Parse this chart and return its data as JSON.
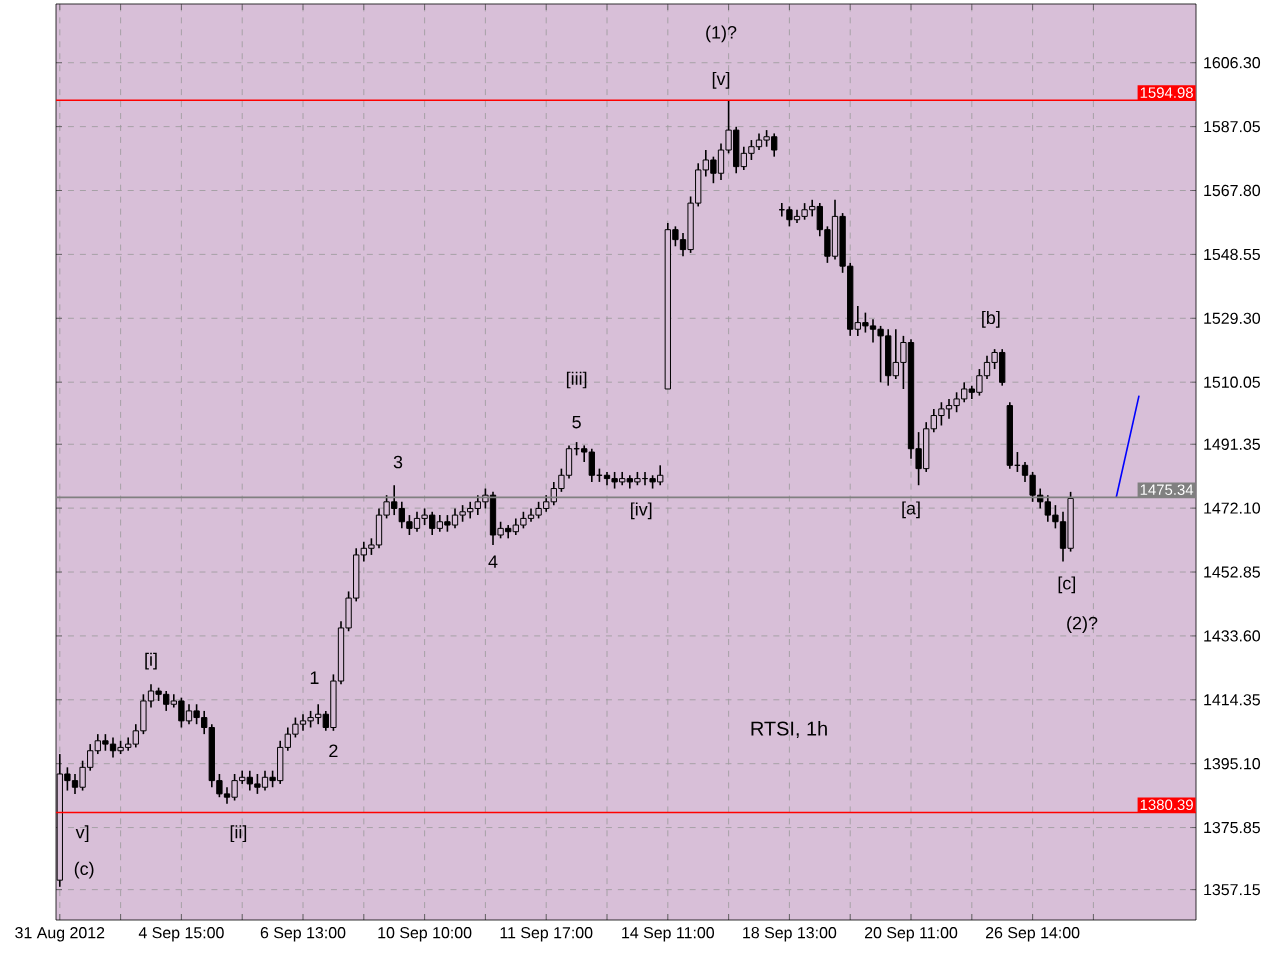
{
  "chart_data": {
    "type": "candlestick",
    "title": "RTSI, 1h",
    "color": "#000000",
    "grid": true,
    "categories": [
      "31 Aug 2012",
      null,
      null,
      null,
      null,
      null,
      null,
      null,
      null,
      null,
      null,
      null,
      null,
      null,
      null,
      null,
      "4 Sep 15:00",
      null,
      null,
      null,
      null,
      null,
      null,
      null,
      null,
      null,
      null,
      null,
      null,
      null,
      null,
      null,
      "6 Sep 13:00",
      null,
      null,
      null,
      null,
      null,
      null,
      null,
      null,
      null,
      null,
      null,
      null,
      null,
      null,
      null,
      "10 Sep 10:00",
      null,
      null,
      null,
      null,
      null,
      null,
      null,
      null,
      null,
      null,
      null,
      null,
      null,
      null,
      null,
      "11 Sep 17:00",
      null,
      null,
      null,
      null,
      null,
      null,
      null,
      null,
      null,
      null,
      null,
      null,
      null,
      null,
      null,
      "14 Sep 11:00",
      null,
      null,
      null,
      null,
      null,
      null,
      null,
      null,
      null,
      null,
      null,
      null,
      null,
      null,
      null,
      "18 Sep 13:00",
      null,
      null,
      null,
      null,
      null,
      null,
      null,
      null,
      null,
      null,
      null,
      null,
      null,
      null,
      null,
      "20 Sep 11:00",
      null,
      null,
      null,
      null,
      null,
      null,
      null,
      null,
      null,
      null,
      null,
      null,
      null,
      null,
      null,
      "26 Sep 14:00",
      null,
      null,
      null,
      null,
      null,
      null,
      null,
      null,
      null,
      null,
      null,
      null,
      null,
      null,
      null,
      null,
      null,
      null,
      null,
      null,
      null
    ],
    "ylim": [
      1348,
      1624
    ],
    "yticks": [
      {
        "value": 1357.15,
        "label": "1357.15"
      },
      {
        "value": 1375.85,
        "label": "1375.85"
      },
      {
        "value": 1395.1,
        "label": "1395.10"
      },
      {
        "value": 1414.35,
        "label": "1414.35"
      },
      {
        "value": 1433.6,
        "label": "1433.60"
      },
      {
        "value": 1452.85,
        "label": "1452.85"
      },
      {
        "value": 1472.1,
        "label": "1472.10"
      },
      {
        "value": 1491.35,
        "label": "1491.35"
      },
      {
        "value": 1510.05,
        "label": "1510.05"
      },
      {
        "value": 1529.3,
        "label": "1529.30"
      },
      {
        "value": 1548.55,
        "label": "1548.55"
      },
      {
        "value": 1567.8,
        "label": "1567.80"
      },
      {
        "value": 1587.05,
        "label": "1587.05"
      },
      {
        "value": 1606.3,
        "label": "1606.30"
      }
    ],
    "ohlc": [
      [
        1360,
        1398,
        1358,
        1392
      ],
      [
        1392,
        1394,
        1387,
        1390
      ],
      [
        1390,
        1392,
        1386,
        1388
      ],
      [
        1388,
        1396,
        1387,
        1394
      ],
      [
        1394,
        1401,
        1393,
        1399
      ],
      [
        1399,
        1404,
        1398,
        1402
      ],
      [
        1402,
        1404,
        1399,
        1401
      ],
      [
        1401,
        1403,
        1397,
        1399
      ],
      [
        1399,
        1402,
        1398,
        1400
      ],
      [
        1400,
        1403,
        1399,
        1401
      ],
      [
        1401,
        1407,
        1400,
        1405
      ],
      [
        1405,
        1416,
        1404,
        1414
      ],
      [
        1414,
        1419,
        1412,
        1417
      ],
      [
        1417,
        1418,
        1414,
        1416
      ],
      [
        1416,
        1417,
        1411,
        1413
      ],
      [
        1413,
        1416,
        1412,
        1414
      ],
      [
        1414,
        1415,
        1406,
        1408
      ],
      [
        1408,
        1413,
        1407,
        1411
      ],
      [
        1411,
        1413,
        1407,
        1409
      ],
      [
        1409,
        1411,
        1404,
        1406
      ],
      [
        1406,
        1407,
        1388,
        1390
      ],
      [
        1390,
        1392,
        1385,
        1386
      ],
      [
        1386,
        1388,
        1383,
        1385
      ],
      [
        1385,
        1392,
        1384,
        1390
      ],
      [
        1390,
        1393,
        1389,
        1391
      ],
      [
        1391,
        1393,
        1387,
        1389
      ],
      [
        1389,
        1392,
        1386,
        1388
      ],
      [
        1388,
        1393,
        1387,
        1391
      ],
      [
        1391,
        1393,
        1388,
        1390
      ],
      [
        1390,
        1402,
        1389,
        1400
      ],
      [
        1400,
        1406,
        1399,
        1404
      ],
      [
        1404,
        1409,
        1403,
        1407
      ],
      [
        1407,
        1410,
        1405,
        1408
      ],
      [
        1408,
        1411,
        1406,
        1409
      ],
      [
        1409,
        1413,
        1407,
        1410
      ],
      [
        1410,
        1411,
        1405,
        1406
      ],
      [
        1406,
        1422,
        1405,
        1420
      ],
      [
        1420,
        1438,
        1419,
        1436
      ],
      [
        1436,
        1447,
        1435,
        1445
      ],
      [
        1445,
        1460,
        1444,
        1458
      ],
      [
        1458,
        1462,
        1456,
        1460
      ],
      [
        1460,
        1463,
        1458,
        1461
      ],
      [
        1461,
        1472,
        1460,
        1470
      ],
      [
        1470,
        1476,
        1469,
        1474
      ],
      [
        1474,
        1479,
        1470,
        1472
      ],
      [
        1472,
        1474,
        1466,
        1468
      ],
      [
        1468,
        1470,
        1464,
        1466
      ],
      [
        1466,
        1471,
        1465,
        1469
      ],
      [
        1469,
        1472,
        1467,
        1470
      ],
      [
        1470,
        1471,
        1464,
        1466
      ],
      [
        1466,
        1470,
        1465,
        1468
      ],
      [
        1468,
        1470,
        1465,
        1467
      ],
      [
        1467,
        1472,
        1466,
        1470
      ],
      [
        1470,
        1473,
        1468,
        1471
      ],
      [
        1471,
        1474,
        1469,
        1472
      ],
      [
        1472,
        1476,
        1470,
        1474
      ],
      [
        1474,
        1478,
        1472,
        1476
      ],
      [
        1476,
        1477,
        1461,
        1464
      ],
      [
        1464,
        1468,
        1463,
        1466
      ],
      [
        1466,
        1467,
        1463,
        1465
      ],
      [
        1465,
        1469,
        1464,
        1467
      ],
      [
        1467,
        1471,
        1466,
        1469
      ],
      [
        1469,
        1472,
        1468,
        1470
      ],
      [
        1470,
        1474,
        1469,
        1472
      ],
      [
        1472,
        1476,
        1471,
        1474
      ],
      [
        1474,
        1480,
        1473,
        1478
      ],
      [
        1478,
        1484,
        1477,
        1482
      ],
      [
        1482,
        1491,
        1481,
        1490
      ],
      [
        1490,
        1492,
        1488,
        1490
      ],
      [
        1490,
        1491,
        1486,
        1489
      ],
      [
        1489,
        1490,
        1480,
        1482
      ],
      [
        1482,
        1484,
        1480,
        1482
      ],
      [
        1482,
        1483,
        1479,
        1481
      ],
      [
        1481,
        1483,
        1478,
        1480
      ],
      [
        1480,
        1483,
        1479,
        1481
      ],
      [
        1481,
        1482,
        1478,
        1480
      ],
      [
        1480,
        1483,
        1479,
        1481
      ],
      [
        1481,
        1483,
        1479,
        1481
      ],
      [
        1481,
        1482,
        1478,
        1480
      ],
      [
        1480,
        1485,
        1479,
        1482
      ],
      [
        1508,
        1558,
        1508,
        1556
      ],
      [
        1556,
        1557,
        1551,
        1553
      ],
      [
        1553,
        1555,
        1548,
        1550
      ],
      [
        1550,
        1566,
        1549,
        1564
      ],
      [
        1564,
        1576,
        1563,
        1574
      ],
      [
        1574,
        1580,
        1572,
        1577
      ],
      [
        1577,
        1578,
        1570,
        1573
      ],
      [
        1573,
        1582,
        1571,
        1580
      ],
      [
        1580,
        1595,
        1579,
        1586
      ],
      [
        1586,
        1587,
        1573,
        1575
      ],
      [
        1575,
        1581,
        1574,
        1579
      ],
      [
        1579,
        1583,
        1577,
        1581
      ],
      [
        1581,
        1585,
        1580,
        1583
      ],
      [
        1583,
        1586,
        1581,
        1584
      ],
      [
        1584,
        1585,
        1578,
        1580
      ],
      [
        1562,
        1564,
        1560,
        1562
      ],
      [
        1562,
        1563,
        1557,
        1559
      ],
      [
        1559,
        1562,
        1558,
        1560
      ],
      [
        1560,
        1564,
        1559,
        1562
      ],
      [
        1562,
        1565,
        1560,
        1563
      ],
      [
        1563,
        1564,
        1554,
        1556
      ],
      [
        1556,
        1557,
        1546,
        1548
      ],
      [
        1548,
        1565,
        1547,
        1560
      ],
      [
        1560,
        1561,
        1543,
        1545
      ],
      [
        1545,
        1546,
        1524,
        1526
      ],
      [
        1526,
        1533,
        1524,
        1528
      ],
      [
        1528,
        1531,
        1525,
        1527
      ],
      [
        1527,
        1529,
        1522,
        1526
      ],
      [
        1526,
        1527,
        1510,
        1524
      ],
      [
        1524,
        1526,
        1509,
        1512
      ],
      [
        1512,
        1526,
        1511,
        1516
      ],
      [
        1516,
        1524,
        1508,
        1522
      ],
      [
        1522,
        1523,
        1487,
        1490
      ],
      [
        1490,
        1495,
        1479,
        1484
      ],
      [
        1484,
        1498,
        1483,
        1496
      ],
      [
        1496,
        1502,
        1495,
        1500
      ],
      [
        1500,
        1504,
        1497,
        1502
      ],
      [
        1502,
        1505,
        1499,
        1503
      ],
      [
        1503,
        1507,
        1501,
        1505
      ],
      [
        1505,
        1510,
        1504,
        1508
      ],
      [
        1508,
        1509,
        1505,
        1507
      ],
      [
        1507,
        1514,
        1506,
        1512
      ],
      [
        1512,
        1518,
        1511,
        1516
      ],
      [
        1516,
        1520,
        1514,
        1519
      ],
      [
        1519,
        1520,
        1509,
        1510
      ],
      [
        1503,
        1504,
        1484,
        1485
      ],
      [
        1485,
        1489,
        1483,
        1485
      ],
      [
        1485,
        1486,
        1480,
        1482
      ],
      [
        1482,
        1483,
        1474,
        1476
      ],
      [
        1476,
        1478,
        1472,
        1474
      ],
      [
        1474,
        1476,
        1468,
        1470
      ],
      [
        1470,
        1473,
        1466,
        1468
      ],
      [
        1468,
        1471,
        1456,
        1460
      ],
      [
        1460,
        1477,
        1459,
        1475
      ],
      null,
      null,
      null,
      null,
      null,
      null,
      null,
      null,
      null,
      null,
      null,
      null,
      null,
      null,
      null,
      null
    ],
    "series": [
      {
        "type": "line",
        "color": "#0000ff",
        "values": [
          null,
          null,
          null,
          null,
          null,
          null,
          null,
          null,
          null,
          null,
          null,
          null,
          null,
          null,
          null,
          null,
          null,
          null,
          null,
          null,
          null,
          null,
          null,
          null,
          null,
          null,
          null,
          null,
          null,
          null,
          null,
          null,
          null,
          null,
          null,
          null,
          null,
          null,
          null,
          null,
          null,
          null,
          null,
          null,
          null,
          null,
          null,
          null,
          null,
          null,
          null,
          null,
          null,
          null,
          null,
          null,
          null,
          null,
          null,
          null,
          null,
          null,
          null,
          null,
          null,
          null,
          null,
          null,
          null,
          null,
          null,
          null,
          null,
          null,
          null,
          null,
          null,
          null,
          null,
          null,
          null,
          null,
          null,
          null,
          null,
          null,
          null,
          null,
          null,
          null,
          null,
          null,
          null,
          null,
          null,
          null,
          null,
          null,
          null,
          null,
          null,
          null,
          null,
          null,
          null,
          null,
          null,
          null,
          null,
          null,
          null,
          null,
          null,
          null,
          null,
          null,
          null,
          null,
          null,
          null,
          null,
          null,
          null,
          null,
          null,
          null,
          null,
          null,
          null,
          null,
          null,
          null,
          null,
          null,
          null,
          null,
          null,
          null,
          null,
          1475.3,
          null,
          null,
          1506,
          null,
          null,
          null,
          null,
          null,
          null,
          null
        ]
      }
    ],
    "ref_lines": [
      {
        "axis": "y",
        "value": 1594.98,
        "label": "1594.98",
        "color": "#ff0000"
      },
      {
        "axis": "y",
        "value": 1380.39,
        "label": "1380.39",
        "color": "#ff0000"
      },
      {
        "axis": "y",
        "value": 1475.34,
        "label": "1475.34",
        "color": "#808080"
      }
    ],
    "annotations": [
      "(1)?",
      "[v]",
      "[iii]",
      "5",
      "[iv]",
      "3",
      "4",
      "1",
      "2",
      "[i]",
      "[ii]",
      "v]",
      "(c)",
      "[a]",
      "[b]",
      "[c]",
      "(2)?"
    ]
  }
}
